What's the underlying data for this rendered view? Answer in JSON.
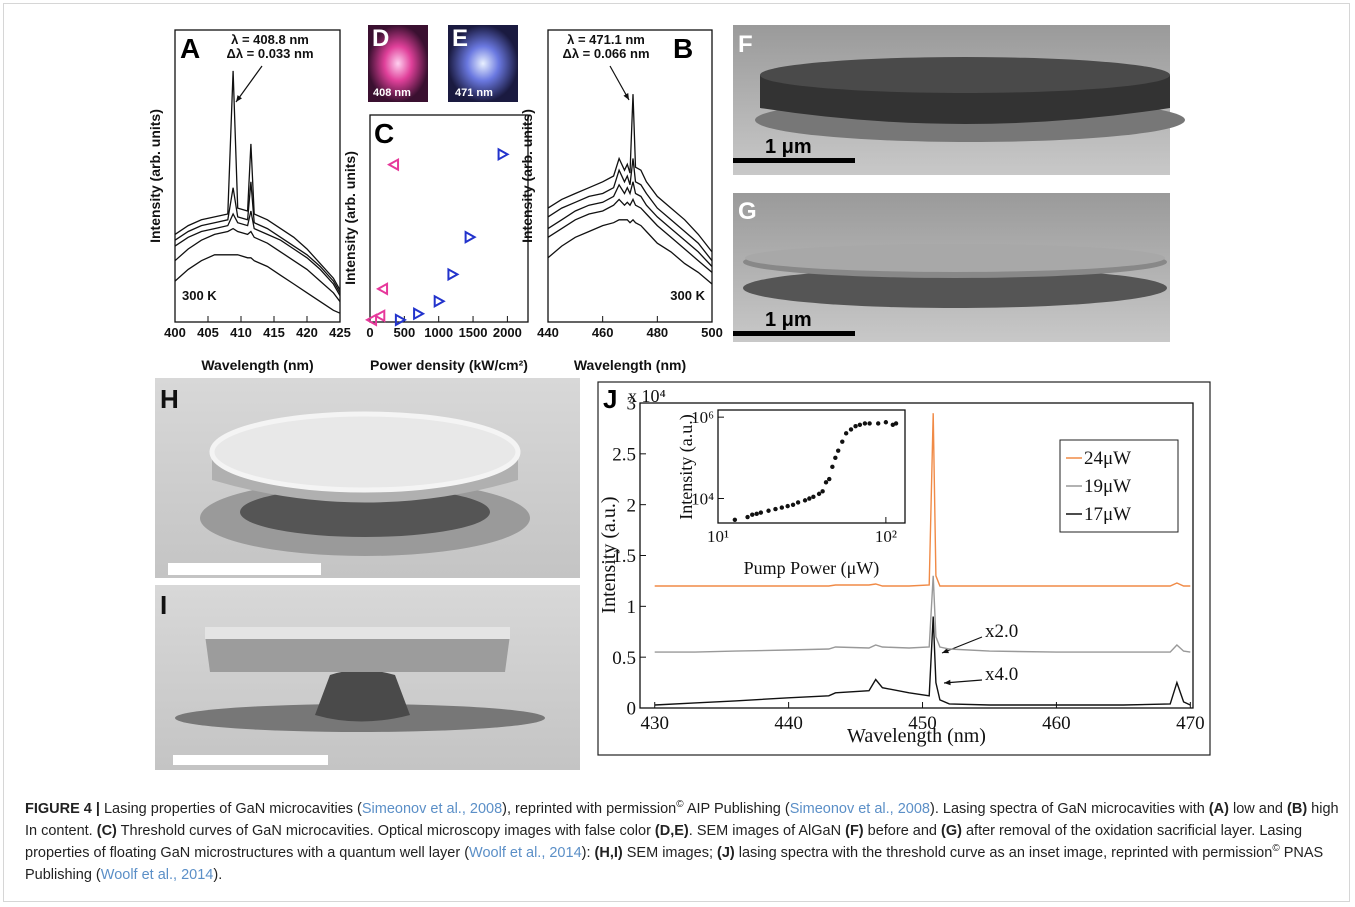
{
  "chart_data": [
    {
      "type": "line",
      "panel_label": "A",
      "x_label": "Wavelength (nm)",
      "y_label": "Intensity (arb. units)",
      "annotations": [
        "λ = 408.8 nm",
        "Δλ = 0.033 nm",
        "300 K"
      ],
      "xlim": [
        400,
        425
      ],
      "xticks": [
        400,
        405,
        410,
        415,
        420,
        425
      ],
      "ylim": [
        0,
        10
      ],
      "x": [
        400,
        402,
        404,
        406,
        408,
        408.8,
        409.5,
        411,
        411.5,
        412,
        414,
        416,
        418,
        420,
        422,
        424,
        425
      ],
      "series": [
        {
          "color": "#111111",
          "values": [
            3.0,
            3.3,
            3.5,
            3.6,
            3.7,
            8.6,
            3.9,
            3.8,
            6.1,
            3.7,
            3.5,
            3.2,
            2.9,
            2.5,
            2.0,
            1.5,
            1.1
          ]
        },
        {
          "color": "#111111",
          "values": [
            2.8,
            3.1,
            3.3,
            3.4,
            3.5,
            4.6,
            3.6,
            3.5,
            4.8,
            3.4,
            3.2,
            2.9,
            2.6,
            2.3,
            1.9,
            1.4,
            1.0
          ]
        },
        {
          "color": "#111111",
          "values": [
            2.6,
            2.9,
            3.1,
            3.2,
            3.3,
            3.7,
            3.4,
            3.3,
            3.8,
            3.2,
            3.0,
            2.8,
            2.5,
            2.2,
            1.8,
            1.3,
            0.9
          ]
        },
        {
          "color": "#111111",
          "values": [
            2.1,
            2.5,
            2.8,
            3.0,
            3.1,
            3.2,
            3.1,
            3.0,
            3.1,
            2.9,
            2.7,
            2.4,
            2.1,
            1.8,
            1.4,
            1.0,
            0.7
          ]
        },
        {
          "color": "#111111",
          "values": [
            1.4,
            1.8,
            2.1,
            2.3,
            2.3,
            2.3,
            2.3,
            2.2,
            2.2,
            2.1,
            1.9,
            1.6,
            1.3,
            1.0,
            0.7,
            0.4,
            0.3
          ]
        }
      ]
    },
    {
      "type": "scatter",
      "panel_label": "C",
      "x_label": "Power density (kW/cm²)",
      "y_label": "Intensity (arb. units)",
      "xlim": [
        0,
        2300
      ],
      "xticks": [
        0,
        500,
        1000,
        1500,
        2000
      ],
      "ylim": [
        0,
        10
      ],
      "series": [
        {
          "color": "#e6399b",
          "marker": "left",
          "x": [
            30,
            150,
            190,
            350
          ],
          "values": [
            0.1,
            0.3,
            1.6,
            7.6
          ]
        },
        {
          "color": "#2233cc",
          "marker": "right",
          "x": [
            435,
            700,
            1000,
            1200,
            1450,
            1930
          ],
          "values": [
            0.1,
            0.4,
            1.0,
            2.3,
            4.1,
            8.1
          ]
        }
      ]
    },
    {
      "type": "line",
      "panel_label": "B",
      "x_label": "Wavelength (nm)",
      "y_label": "Intensity (arb. units)",
      "annotations": [
        "λ = 471.1 nm",
        "Δλ = 0.066 nm",
        "300 K"
      ],
      "xlim": [
        440,
        500
      ],
      "xticks": [
        440,
        460,
        480,
        500
      ],
      "ylim": [
        0,
        10
      ],
      "x": [
        440,
        445,
        450,
        455,
        460,
        464,
        466,
        468,
        469,
        470,
        471.1,
        472,
        474,
        476,
        480,
        485,
        490,
        495,
        500
      ],
      "series": [
        {
          "color": "#111111",
          "values": [
            3.9,
            4.2,
            4.4,
            4.6,
            4.8,
            5.0,
            5.6,
            5.2,
            5.4,
            5.1,
            7.8,
            5.3,
            5.2,
            4.8,
            4.3,
            3.9,
            3.5,
            3.0,
            2.4
          ]
        },
        {
          "color": "#111111",
          "values": [
            3.6,
            3.9,
            4.1,
            4.3,
            4.4,
            4.6,
            5.2,
            4.8,
            5.0,
            4.7,
            5.6,
            4.8,
            4.7,
            4.4,
            3.9,
            3.5,
            3.1,
            2.7,
            2.1
          ]
        },
        {
          "color": "#111111",
          "values": [
            3.2,
            3.5,
            3.8,
            4.0,
            4.1,
            4.3,
            4.7,
            4.4,
            4.6,
            4.4,
            4.8,
            4.4,
            4.3,
            4.0,
            3.6,
            3.2,
            2.8,
            2.4,
            1.9
          ]
        },
        {
          "color": "#111111",
          "values": [
            2.9,
            3.2,
            3.5,
            3.7,
            3.8,
            4.0,
            4.2,
            4.0,
            4.1,
            4.0,
            4.2,
            4.0,
            3.9,
            3.7,
            3.3,
            2.9,
            2.5,
            2.1,
            1.7
          ]
        },
        {
          "color": "#111111",
          "values": [
            2.2,
            2.6,
            2.9,
            3.1,
            3.3,
            3.4,
            3.5,
            3.5,
            3.5,
            3.4,
            3.5,
            3.4,
            3.3,
            3.1,
            2.7,
            2.4,
            2.0,
            1.7,
            1.3
          ]
        }
      ]
    },
    {
      "type": "line",
      "panel_label": "J",
      "x_label": "Wavelength (nm)",
      "y_label": "Intensity (a.u.)",
      "y_multiplier": "x 10⁴",
      "annotations": [
        "x2.0",
        "x4.0"
      ],
      "legend": "upper right",
      "xlim": [
        428.9,
        470.2
      ],
      "xticks": [
        430,
        440,
        450,
        460,
        470
      ],
      "ylim": [
        0,
        3
      ],
      "yticks": [
        0,
        0.5,
        1,
        1.5,
        2,
        2.5,
        3
      ],
      "x": [
        430,
        433,
        436,
        440,
        443,
        443.5,
        446,
        446.5,
        447,
        449,
        450.5,
        450.8,
        451,
        451.3,
        452,
        455,
        460,
        465,
        468.5,
        469,
        469.5,
        470
      ],
      "series": [
        {
          "name": "24μW",
          "color": "#f08a46",
          "values": [
            1.2,
            1.2,
            1.2,
            1.2,
            1.2,
            1.21,
            1.21,
            1.22,
            1.2,
            1.2,
            1.21,
            2.9,
            1.3,
            1.2,
            1.2,
            1.2,
            1.2,
            1.2,
            1.2,
            1.23,
            1.2,
            1.2
          ]
        },
        {
          "name": "19μW",
          "color": "#999999",
          "values": [
            0.55,
            0.55,
            0.56,
            0.57,
            0.58,
            0.6,
            0.59,
            0.62,
            0.6,
            0.59,
            0.6,
            1.3,
            0.7,
            0.6,
            0.58,
            0.56,
            0.55,
            0.55,
            0.55,
            0.62,
            0.56,
            0.55
          ]
        },
        {
          "name": "17μW",
          "color": "#111111",
          "values": [
            0.03,
            0.05,
            0.07,
            0.1,
            0.12,
            0.15,
            0.17,
            0.28,
            0.2,
            0.15,
            0.12,
            0.9,
            0.25,
            0.08,
            0.04,
            0.03,
            0.03,
            0.03,
            0.04,
            0.25,
            0.06,
            0.03
          ]
        }
      ]
    },
    {
      "type": "scatter",
      "x_label": "Pump Power (μW)",
      "y_label": "Intensity (a.u.)",
      "xlog": true,
      "ylog": true,
      "xlim": [
        10,
        130
      ],
      "xticks": [
        {
          "value": 10,
          "label": "10¹"
        },
        {
          "value": 100,
          "label": "10²"
        }
      ],
      "ylim": [
        2500,
        1500000
      ],
      "yticks": [
        {
          "value": 10000,
          "label": "10⁴"
        },
        {
          "value": 1000000,
          "label": "10⁶"
        }
      ],
      "series": [
        {
          "color": "#111111",
          "marker": "dot",
          "x": [
            12.6,
            15,
            16,
            17,
            18,
            20,
            22,
            24,
            26,
            28,
            30,
            33,
            35,
            37,
            40,
            42,
            44,
            46,
            48,
            50,
            52,
            55,
            58,
            62,
            66,
            70,
            75,
            80,
            90,
            100,
            110,
            115
          ],
          "values": [
            3000,
            3500,
            4000,
            4200,
            4500,
            5000,
            5500,
            6000,
            6500,
            7000,
            8000,
            9000,
            10000,
            11000,
            13000,
            15000,
            25000,
            30000,
            60000,
            100000,
            150000,
            250000,
            400000,
            500000,
            600000,
            650000,
            700000,
            700000,
            700000,
            750000,
            650000,
            700000
          ]
        }
      ]
    }
  ],
  "images": [
    {
      "label": "D",
      "caption": "408 nm"
    },
    {
      "label": "E",
      "caption": "471 nm"
    },
    {
      "label": "F",
      "scale": "1 μm"
    },
    {
      "label": "G",
      "scale": "1 μm"
    },
    {
      "label": "H"
    },
    {
      "label": "I"
    }
  ],
  "caption": [
    {
      "text": "FIGURE 4 |",
      "style": "bold"
    },
    {
      "text": " Lasing properties of GaN microcavities ("
    },
    {
      "text": "Simeonov et al., 2008",
      "style": "link"
    },
    {
      "text": "), reprinted with permission"
    },
    {
      "text": "©",
      "style": "sup"
    },
    {
      "text": " AIP Publishing ("
    },
    {
      "text": "Simeonov et al., 2008",
      "style": "link"
    },
    {
      "text": "). Lasing spectra of GaN microcavities with "
    },
    {
      "text": "(A)",
      "style": "bold"
    },
    {
      "text": " low and "
    },
    {
      "text": "(B)",
      "style": "bold"
    },
    {
      "text": " high In content. "
    },
    {
      "text": "(C)",
      "style": "bold"
    },
    {
      "text": " Threshold curves of GaN microcavities. Optical microscopy images with false color "
    },
    {
      "text": "(D,E)",
      "style": "bold"
    },
    {
      "text": ". SEM images of AlGaN "
    },
    {
      "text": "(F)",
      "style": "bold"
    },
    {
      "text": " before and "
    },
    {
      "text": "(G)",
      "style": "bold"
    },
    {
      "text": " after removal of the oxidation sacrificial layer. Lasing properties of floating GaN microstructures with a quantum well layer ("
    },
    {
      "text": "Woolf et al., 2014",
      "style": "link"
    },
    {
      "text": "): "
    },
    {
      "text": "(H,I)",
      "style": "bold"
    },
    {
      "text": " SEM images; "
    },
    {
      "text": "(J)",
      "style": "bold"
    },
    {
      "text": " lasing spectra with the threshold curve as an inset image, reprinted with permission"
    },
    {
      "text": "©",
      "style": "sup"
    },
    {
      "text": " PNAS Publishing ("
    },
    {
      "text": "Woolf et al., 2014",
      "style": "link"
    },
    {
      "text": ")."
    }
  ]
}
